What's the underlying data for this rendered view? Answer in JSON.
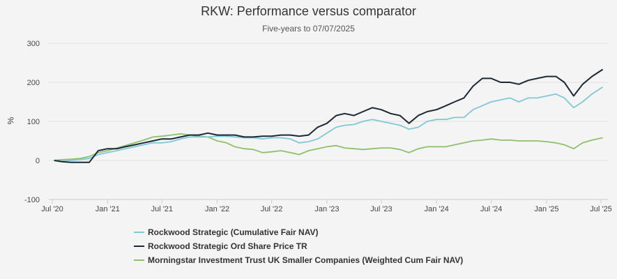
{
  "chart_data": {
    "type": "line",
    "title": "RKW: Performance versus comparator",
    "subtitle": "Five-years to 07/07/2025",
    "ylabel": "%",
    "ylim": [
      -100,
      300
    ],
    "yticks": [
      "-100",
      "0",
      "100",
      "200",
      "300"
    ],
    "xlim": [
      "2020-07-07",
      "2025-07-07"
    ],
    "xticks": [
      {
        "date": "2020-07-01",
        "label": "Jul '20"
      },
      {
        "date": "2021-01-01",
        "label": "Jan '21"
      },
      {
        "date": "2021-07-01",
        "label": "Jul '21"
      },
      {
        "date": "2022-01-01",
        "label": "Jan '22"
      },
      {
        "date": "2022-07-01",
        "label": "Jul '22"
      },
      {
        "date": "2023-01-01",
        "label": "Jan '23"
      },
      {
        "date": "2023-07-01",
        "label": "Jul '23"
      },
      {
        "date": "2024-01-01",
        "label": "Jan '24"
      },
      {
        "date": "2024-07-01",
        "label": "Jul '24"
      },
      {
        "date": "2025-01-01",
        "label": "Jan '25"
      },
      {
        "date": "2025-07-01",
        "label": "Jul '25"
      }
    ],
    "grid": true,
    "legend_position": "bottom",
    "series": [
      {
        "name": "Rockwood Strategic (Cumulative Fair NAV)",
        "color": "#7ec8d8",
        "points": [
          [
            "2020-07-07",
            0
          ],
          [
            "2020-08-01",
            -2
          ],
          [
            "2020-09-01",
            0
          ],
          [
            "2020-10-01",
            2
          ],
          [
            "2020-11-01",
            5
          ],
          [
            "2020-12-01",
            15
          ],
          [
            "2021-01-01",
            20
          ],
          [
            "2021-02-01",
            25
          ],
          [
            "2021-03-01",
            30
          ],
          [
            "2021-04-01",
            35
          ],
          [
            "2021-05-01",
            40
          ],
          [
            "2021-06-01",
            45
          ],
          [
            "2021-07-01",
            45
          ],
          [
            "2021-08-01",
            48
          ],
          [
            "2021-09-01",
            55
          ],
          [
            "2021-10-01",
            60
          ],
          [
            "2021-11-01",
            60
          ],
          [
            "2021-12-01",
            60
          ],
          [
            "2022-01-01",
            62
          ],
          [
            "2022-02-01",
            62
          ],
          [
            "2022-03-01",
            60
          ],
          [
            "2022-04-01",
            58
          ],
          [
            "2022-05-01",
            58
          ],
          [
            "2022-06-01",
            55
          ],
          [
            "2022-07-01",
            58
          ],
          [
            "2022-08-01",
            58
          ],
          [
            "2022-09-01",
            55
          ],
          [
            "2022-10-01",
            45
          ],
          [
            "2022-11-01",
            48
          ],
          [
            "2022-12-01",
            55
          ],
          [
            "2023-01-01",
            70
          ],
          [
            "2023-02-01",
            85
          ],
          [
            "2023-03-01",
            90
          ],
          [
            "2023-04-01",
            92
          ],
          [
            "2023-05-01",
            100
          ],
          [
            "2023-06-01",
            105
          ],
          [
            "2023-07-01",
            100
          ],
          [
            "2023-08-01",
            95
          ],
          [
            "2023-09-01",
            90
          ],
          [
            "2023-10-01",
            80
          ],
          [
            "2023-11-01",
            85
          ],
          [
            "2023-12-01",
            100
          ],
          [
            "2024-01-01",
            105
          ],
          [
            "2024-02-01",
            105
          ],
          [
            "2024-03-01",
            110
          ],
          [
            "2024-04-01",
            110
          ],
          [
            "2024-05-01",
            130
          ],
          [
            "2024-06-01",
            140
          ],
          [
            "2024-07-01",
            150
          ],
          [
            "2024-08-01",
            155
          ],
          [
            "2024-09-01",
            160
          ],
          [
            "2024-10-01",
            150
          ],
          [
            "2024-11-01",
            160
          ],
          [
            "2024-12-01",
            160
          ],
          [
            "2025-01-01",
            165
          ],
          [
            "2025-02-01",
            170
          ],
          [
            "2025-03-01",
            160
          ],
          [
            "2025-04-01",
            135
          ],
          [
            "2025-05-01",
            150
          ],
          [
            "2025-06-01",
            170
          ],
          [
            "2025-07-07",
            188
          ]
        ]
      },
      {
        "name": "Rockwood Strategic Ord Share Price TR",
        "color": "#1b2838",
        "points": [
          [
            "2020-07-07",
            0
          ],
          [
            "2020-08-01",
            -3
          ],
          [
            "2020-09-01",
            -5
          ],
          [
            "2020-10-01",
            -5
          ],
          [
            "2020-11-01",
            -5
          ],
          [
            "2020-12-01",
            25
          ],
          [
            "2021-01-01",
            30
          ],
          [
            "2021-02-01",
            30
          ],
          [
            "2021-03-01",
            35
          ],
          [
            "2021-04-01",
            40
          ],
          [
            "2021-05-01",
            45
          ],
          [
            "2021-06-01",
            50
          ],
          [
            "2021-07-01",
            55
          ],
          [
            "2021-08-01",
            55
          ],
          [
            "2021-09-01",
            60
          ],
          [
            "2021-10-01",
            65
          ],
          [
            "2021-11-01",
            65
          ],
          [
            "2021-12-01",
            70
          ],
          [
            "2022-01-01",
            65
          ],
          [
            "2022-02-01",
            65
          ],
          [
            "2022-03-01",
            65
          ],
          [
            "2022-04-01",
            60
          ],
          [
            "2022-05-01",
            60
          ],
          [
            "2022-06-01",
            62
          ],
          [
            "2022-07-01",
            62
          ],
          [
            "2022-08-01",
            65
          ],
          [
            "2022-09-01",
            65
          ],
          [
            "2022-10-01",
            62
          ],
          [
            "2022-11-01",
            65
          ],
          [
            "2022-12-01",
            85
          ],
          [
            "2023-01-01",
            95
          ],
          [
            "2023-02-01",
            115
          ],
          [
            "2023-03-01",
            120
          ],
          [
            "2023-04-01",
            115
          ],
          [
            "2023-05-01",
            125
          ],
          [
            "2023-06-01",
            135
          ],
          [
            "2023-07-01",
            130
          ],
          [
            "2023-08-01",
            120
          ],
          [
            "2023-09-01",
            115
          ],
          [
            "2023-10-01",
            95
          ],
          [
            "2023-11-01",
            115
          ],
          [
            "2023-12-01",
            125
          ],
          [
            "2024-01-01",
            130
          ],
          [
            "2024-02-01",
            140
          ],
          [
            "2024-03-01",
            150
          ],
          [
            "2024-04-01",
            160
          ],
          [
            "2024-05-01",
            190
          ],
          [
            "2024-06-01",
            210
          ],
          [
            "2024-07-01",
            210
          ],
          [
            "2024-08-01",
            200
          ],
          [
            "2024-09-01",
            200
          ],
          [
            "2024-10-01",
            195
          ],
          [
            "2024-11-01",
            205
          ],
          [
            "2024-12-01",
            210
          ],
          [
            "2025-01-01",
            215
          ],
          [
            "2025-02-01",
            215
          ],
          [
            "2025-03-01",
            200
          ],
          [
            "2025-04-01",
            165
          ],
          [
            "2025-05-01",
            195
          ],
          [
            "2025-06-01",
            215
          ],
          [
            "2025-07-07",
            233
          ]
        ]
      },
      {
        "name": "Morningstar Investment Trust UK Smaller Companies (Weighted Cum Fair NAV)",
        "color": "#8cc06a",
        "points": [
          [
            "2020-07-07",
            0
          ],
          [
            "2020-08-01",
            2
          ],
          [
            "2020-09-01",
            3
          ],
          [
            "2020-10-01",
            5
          ],
          [
            "2020-11-01",
            10
          ],
          [
            "2020-12-01",
            20
          ],
          [
            "2021-01-01",
            25
          ],
          [
            "2021-02-01",
            32
          ],
          [
            "2021-03-01",
            38
          ],
          [
            "2021-04-01",
            45
          ],
          [
            "2021-05-01",
            52
          ],
          [
            "2021-06-01",
            60
          ],
          [
            "2021-07-01",
            62
          ],
          [
            "2021-08-01",
            65
          ],
          [
            "2021-09-01",
            68
          ],
          [
            "2021-10-01",
            65
          ],
          [
            "2021-11-01",
            62
          ],
          [
            "2021-12-01",
            60
          ],
          [
            "2022-01-01",
            50
          ],
          [
            "2022-02-01",
            45
          ],
          [
            "2022-03-01",
            35
          ],
          [
            "2022-04-01",
            30
          ],
          [
            "2022-05-01",
            28
          ],
          [
            "2022-06-01",
            20
          ],
          [
            "2022-07-01",
            22
          ],
          [
            "2022-08-01",
            25
          ],
          [
            "2022-09-01",
            20
          ],
          [
            "2022-10-01",
            15
          ],
          [
            "2022-11-01",
            25
          ],
          [
            "2022-12-01",
            30
          ],
          [
            "2023-01-01",
            35
          ],
          [
            "2023-02-01",
            38
          ],
          [
            "2023-03-01",
            32
          ],
          [
            "2023-04-01",
            30
          ],
          [
            "2023-05-01",
            28
          ],
          [
            "2023-06-01",
            30
          ],
          [
            "2023-07-01",
            32
          ],
          [
            "2023-08-01",
            32
          ],
          [
            "2023-09-01",
            28
          ],
          [
            "2023-10-01",
            20
          ],
          [
            "2023-11-01",
            30
          ],
          [
            "2023-12-01",
            35
          ],
          [
            "2024-01-01",
            35
          ],
          [
            "2024-02-01",
            35
          ],
          [
            "2024-03-01",
            40
          ],
          [
            "2024-04-01",
            45
          ],
          [
            "2024-05-01",
            50
          ],
          [
            "2024-06-01",
            52
          ],
          [
            "2024-07-01",
            55
          ],
          [
            "2024-08-01",
            52
          ],
          [
            "2024-09-01",
            52
          ],
          [
            "2024-10-01",
            50
          ],
          [
            "2024-11-01",
            50
          ],
          [
            "2024-12-01",
            50
          ],
          [
            "2025-01-01",
            48
          ],
          [
            "2025-02-01",
            45
          ],
          [
            "2025-03-01",
            40
          ],
          [
            "2025-04-01",
            30
          ],
          [
            "2025-05-01",
            45
          ],
          [
            "2025-06-01",
            52
          ],
          [
            "2025-07-07",
            58
          ]
        ]
      }
    ]
  }
}
